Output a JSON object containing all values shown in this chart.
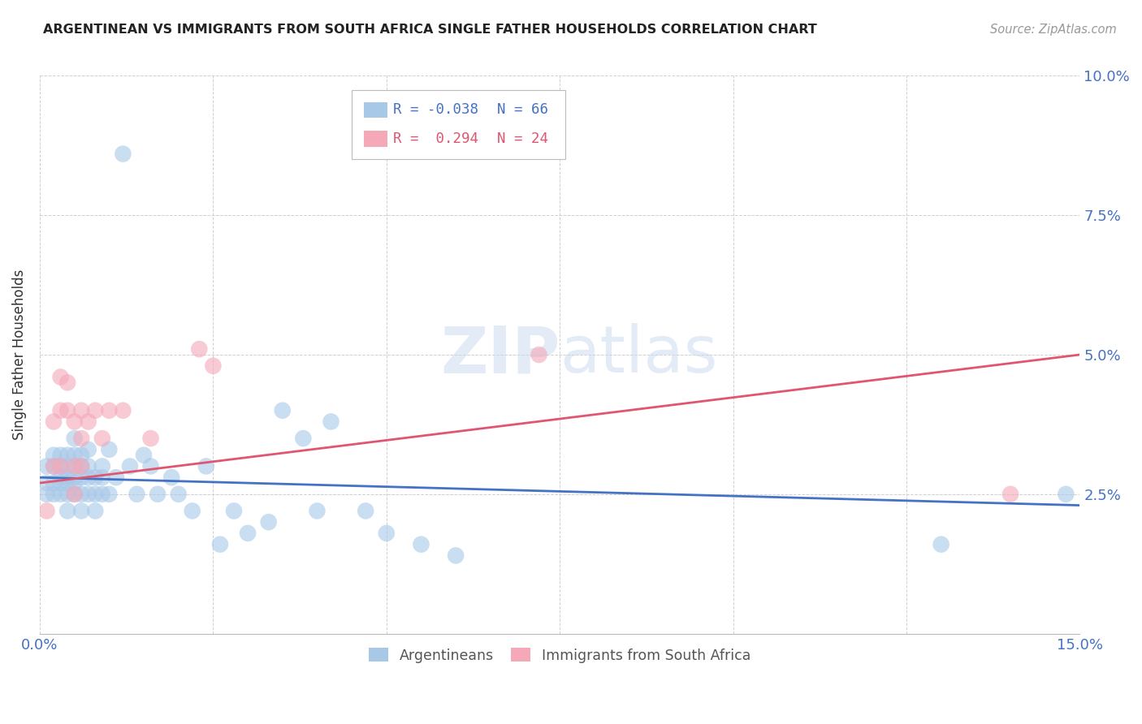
{
  "title": "ARGENTINEAN VS IMMIGRANTS FROM SOUTH AFRICA SINGLE FATHER HOUSEHOLDS CORRELATION CHART",
  "source": "Source: ZipAtlas.com",
  "ylabel": "Single Father Households",
  "xlim": [
    0.0,
    0.15
  ],
  "ylim": [
    0.0,
    0.1
  ],
  "ytick_labels_right": [
    "2.5%",
    "5.0%",
    "7.5%",
    "10.0%"
  ],
  "ytick_vals_right": [
    0.025,
    0.05,
    0.075,
    0.1
  ],
  "xtick_labels": [
    "0.0%",
    "",
    "",
    "",
    "",
    "",
    "15.0%"
  ],
  "xtick_vals": [
    0.0,
    0.025,
    0.05,
    0.075,
    0.1,
    0.125,
    0.15
  ],
  "argentineans_color": "#a8c8e8",
  "immigrants_color": "#f4a8b8",
  "trend_argentineans_color": "#4472c4",
  "trend_immigrants_color": "#e05570",
  "watermark_color": "#c8d8ee",
  "legend_r1": "R = -0.038",
  "legend_n1": "N = 66",
  "legend_r2": "R =  0.294",
  "legend_n2": "N = 24",
  "legend_color1": "#4472c4",
  "legend_color2": "#e05570",
  "legend_patch1": "#a8c8e8",
  "legend_patch2": "#f4a8b8",
  "argentineans_x": [
    0.001,
    0.001,
    0.001,
    0.002,
    0.002,
    0.002,
    0.002,
    0.003,
    0.003,
    0.003,
    0.003,
    0.003,
    0.004,
    0.004,
    0.004,
    0.004,
    0.004,
    0.004,
    0.005,
    0.005,
    0.005,
    0.005,
    0.005,
    0.005,
    0.006,
    0.006,
    0.006,
    0.006,
    0.006,
    0.007,
    0.007,
    0.007,
    0.007,
    0.008,
    0.008,
    0.008,
    0.009,
    0.009,
    0.009,
    0.01,
    0.01,
    0.011,
    0.012,
    0.013,
    0.014,
    0.015,
    0.016,
    0.017,
    0.019,
    0.02,
    0.022,
    0.024,
    0.026,
    0.028,
    0.03,
    0.033,
    0.035,
    0.038,
    0.04,
    0.042,
    0.047,
    0.05,
    0.055,
    0.06,
    0.13,
    0.148
  ],
  "argentineans_y": [
    0.027,
    0.025,
    0.03,
    0.027,
    0.025,
    0.03,
    0.032,
    0.027,
    0.025,
    0.03,
    0.028,
    0.032,
    0.027,
    0.025,
    0.03,
    0.032,
    0.028,
    0.022,
    0.027,
    0.025,
    0.03,
    0.028,
    0.032,
    0.035,
    0.025,
    0.028,
    0.03,
    0.022,
    0.032,
    0.028,
    0.025,
    0.033,
    0.03,
    0.025,
    0.028,
    0.022,
    0.025,
    0.028,
    0.03,
    0.025,
    0.033,
    0.028,
    0.086,
    0.03,
    0.025,
    0.032,
    0.03,
    0.025,
    0.028,
    0.025,
    0.022,
    0.03,
    0.016,
    0.022,
    0.018,
    0.02,
    0.04,
    0.035,
    0.022,
    0.038,
    0.022,
    0.018,
    0.016,
    0.014,
    0.016,
    0.025
  ],
  "immigrants_x": [
    0.001,
    0.002,
    0.002,
    0.003,
    0.003,
    0.003,
    0.004,
    0.004,
    0.005,
    0.005,
    0.005,
    0.006,
    0.006,
    0.006,
    0.007,
    0.008,
    0.009,
    0.01,
    0.012,
    0.016,
    0.023,
    0.025,
    0.072,
    0.14
  ],
  "immigrants_y": [
    0.022,
    0.03,
    0.038,
    0.03,
    0.04,
    0.046,
    0.04,
    0.045,
    0.038,
    0.03,
    0.025,
    0.04,
    0.035,
    0.03,
    0.038,
    0.04,
    0.035,
    0.04,
    0.04,
    0.035,
    0.051,
    0.048,
    0.05,
    0.025
  ],
  "trend_arg_x0": 0.0,
  "trend_arg_y0": 0.028,
  "trend_arg_x1": 0.15,
  "trend_arg_y1": 0.023,
  "trend_imm_x0": 0.0,
  "trend_imm_y0": 0.027,
  "trend_imm_x1": 0.15,
  "trend_imm_y1": 0.05
}
